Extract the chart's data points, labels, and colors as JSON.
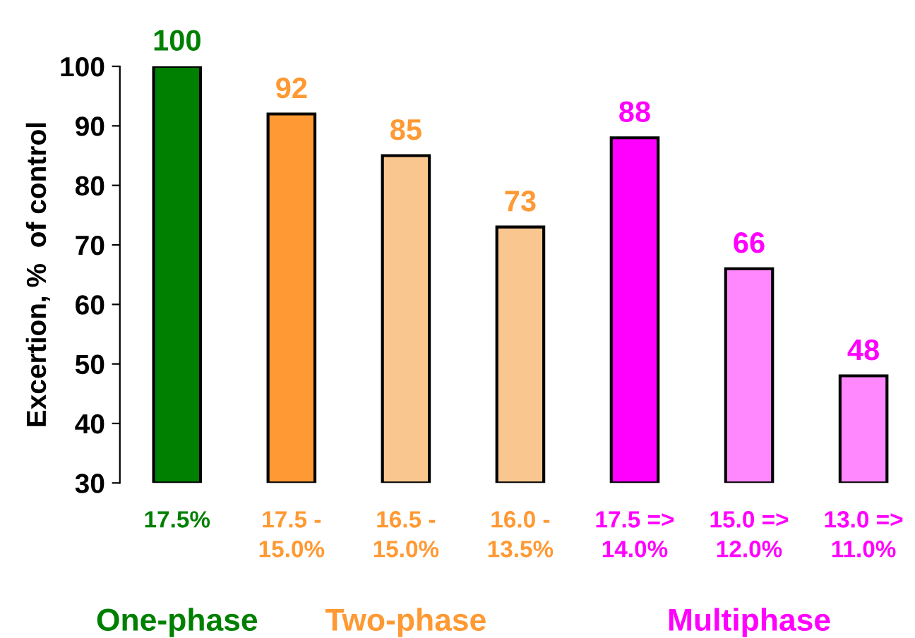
{
  "chart_data": {
    "type": "bar",
    "ylabel": "Excertion, %  of control",
    "categories": [
      "17.5%",
      "17.5 -\n15.0%",
      "16.5 -\n15.0%",
      "16.0 -\n13.5%",
      "17.5 =>\n14.0%",
      "15.0 =>\n12.0%",
      "13.0 =>\n11.0%"
    ],
    "values": [
      100,
      92,
      85,
      73,
      88,
      66,
      48
    ],
    "colors": [
      "#008000",
      "#ff9933",
      "#f9c690",
      "#f9c690",
      "#ff00ff",
      "#ff88ff",
      "#ff88ff"
    ],
    "data_labels": true,
    "ylim": [
      30,
      100
    ],
    "yticks": [
      30,
      40,
      50,
      60,
      70,
      80,
      90,
      100
    ],
    "grid": false,
    "annotations": [
      "One-phase",
      "Two-phase",
      "Multiphase"
    ]
  }
}
